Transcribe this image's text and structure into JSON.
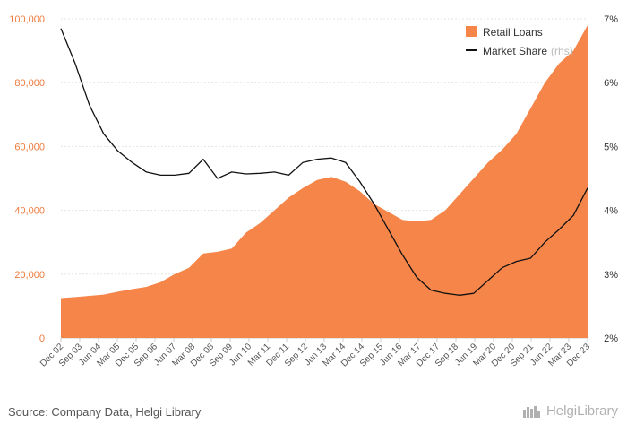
{
  "chart_data": {
    "type": "area",
    "y_left": {
      "ticks": [
        "100,000",
        "80,000",
        "60,000",
        "40,000",
        "20,000",
        "0"
      ],
      "range": [
        0,
        100000
      ]
    },
    "y_right": {
      "ticks": [
        "7%",
        "6%",
        "5%",
        "4%",
        "3%",
        "2%"
      ],
      "range": [
        2,
        7
      ]
    },
    "x_ticks": [
      "Dec 02",
      "Sep 03",
      "Jun 04",
      "Mar 05",
      "Dec 05",
      "Sep 06",
      "Jun 07",
      "Mar 08",
      "Dec 08",
      "Sep 09",
      "Jun 10",
      "Mar 11",
      "Dec 11",
      "Sep 12",
      "Jun 13",
      "Mar 14",
      "Dec 14",
      "Sep 15",
      "Jun 16",
      "Mar 17",
      "Dec 17",
      "Sep 18",
      "Jun 19",
      "Mar 20",
      "Dec 20",
      "Sep 21",
      "Jun 22",
      "Mar 23",
      "Dec 23"
    ],
    "grid": true,
    "legend_position": "top-right",
    "series": [
      {
        "name": "Retail Loans",
        "type": "area",
        "axis": "left",
        "color": "#f58549",
        "values": [
          12500,
          12800,
          13200,
          13600,
          14500,
          15300,
          16000,
          17500,
          20000,
          22000,
          26500,
          27000,
          28000,
          33000,
          36000,
          40000,
          44000,
          47000,
          49500,
          50500,
          49000,
          46000,
          42000,
          39500,
          37000,
          36500,
          37000,
          40000,
          45000,
          50000,
          55000,
          59000,
          64000,
          72000,
          80000,
          86000,
          90000,
          98000
        ]
      },
      {
        "name": "Market Share",
        "name_suffix": "(rhs)",
        "type": "line",
        "axis": "right",
        "color": "#111111",
        "values": [
          6.85,
          6.3,
          5.65,
          5.2,
          4.93,
          4.75,
          4.6,
          4.55,
          4.55,
          4.58,
          4.8,
          4.5,
          4.6,
          4.57,
          4.58,
          4.6,
          4.55,
          4.75,
          4.8,
          4.82,
          4.75,
          4.45,
          4.1,
          3.7,
          3.3,
          2.95,
          2.75,
          2.7,
          2.67,
          2.7,
          2.9,
          3.1,
          3.2,
          3.25,
          3.5,
          3.7,
          3.92,
          4.35
        ]
      }
    ]
  },
  "footer": {
    "source": "Source: Company Data, Helgi Library",
    "brand": "HelgiLibrary"
  }
}
